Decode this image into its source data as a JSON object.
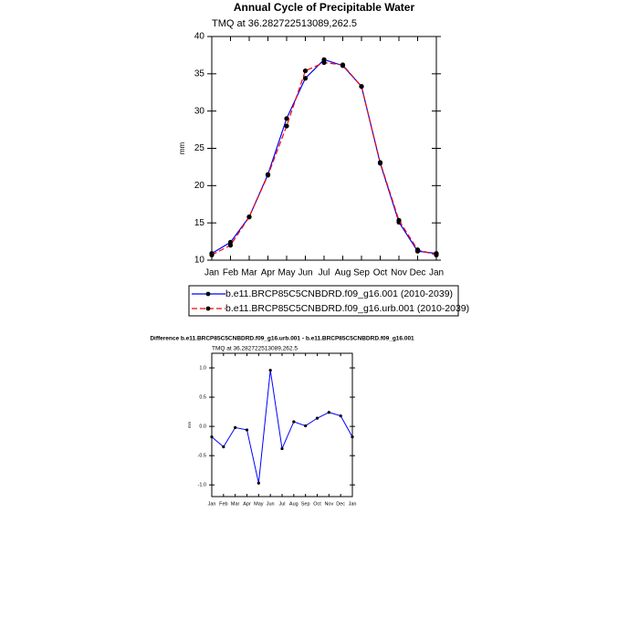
{
  "chart_data": [
    {
      "type": "line",
      "title": "Annual Cycle of Precipitable Water",
      "subtitle": "TMQ at 36.282722513089,262.5",
      "y_label": "mm",
      "categories": [
        "Jan",
        "Feb",
        "Mar",
        "Apr",
        "May",
        "Jun",
        "Jul",
        "Aug",
        "Sep",
        "Oct",
        "Nov",
        "Dec",
        "Jan"
      ],
      "series": [
        {
          "name": "b.e11.BRCP85C5CNBDRD.f09_g16.001 (2010-2039)",
          "color": "#0000ff",
          "line_style": "solid",
          "values": [
            10.9,
            12.4,
            15.8,
            21.5,
            29.0,
            34.4,
            36.9,
            36.1,
            33.3,
            23.0,
            15.1,
            11.2,
            10.9
          ]
        },
        {
          "name": "b.e11.BRCP85C5CNBDRD.f09_g16.urb.001 (2010-2039)",
          "color": "#ff0000",
          "line_style": "dashed",
          "values": [
            10.7,
            12.0,
            15.8,
            21.4,
            28.0,
            35.4,
            36.5,
            36.2,
            33.3,
            23.1,
            15.35,
            11.4,
            10.7
          ]
        }
      ],
      "marker_color": "#000000",
      "legend": "bottom",
      "ylim": [
        10,
        40
      ],
      "yticks": [
        10,
        15,
        20,
        25,
        30,
        35,
        40
      ]
    },
    {
      "type": "line",
      "title": "Difference b.e11.BRCP85C5CNBDRD.f09_g16.urb.001 - b.e11.BRCP85C5CNBDRD.f09_g16.001",
      "subtitle": "TMQ at 36.282722513089,262.5",
      "y_label": "mm",
      "categories": [
        "Jan",
        "Feb",
        "Mar",
        "Apr",
        "May",
        "Jun",
        "Jul",
        "Aug",
        "Sep",
        "Oct",
        "Nov",
        "Dec",
        "Jan"
      ],
      "series": [
        {
          "color": "#0000ff",
          "line_style": "solid",
          "values": [
            -0.18,
            -0.35,
            -0.02,
            -0.06,
            -0.97,
            0.96,
            -0.38,
            0.08,
            0.01,
            0.14,
            0.24,
            0.18,
            -0.18
          ]
        }
      ],
      "marker_color": "#000000",
      "ylim": [
        -1.2,
        1.25
      ],
      "yticks": [
        {
          "value": -1.0,
          "label": "-1.0"
        },
        {
          "value": -0.5,
          "label": "-0.5"
        },
        {
          "value": 0,
          "label": "0.0"
        },
        {
          "value": 0.5,
          "label": "0.5"
        },
        {
          "value": 1.0,
          "label": "1.0"
        }
      ]
    }
  ]
}
